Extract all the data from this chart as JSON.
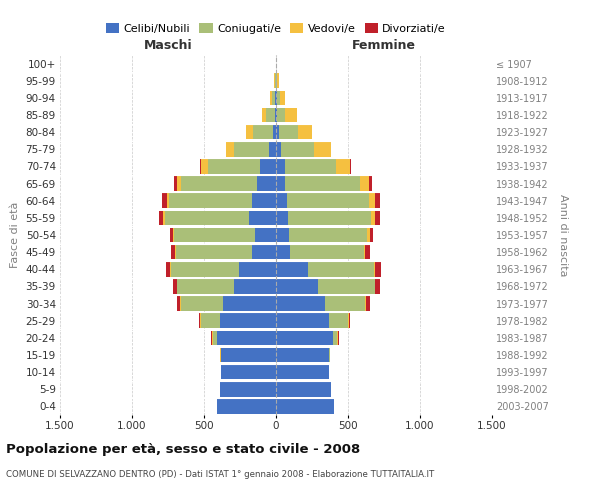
{
  "age_groups": [
    "0-4",
    "5-9",
    "10-14",
    "15-19",
    "20-24",
    "25-29",
    "30-34",
    "35-39",
    "40-44",
    "45-49",
    "50-54",
    "55-59",
    "60-64",
    "65-69",
    "70-74",
    "75-79",
    "80-84",
    "85-89",
    "90-94",
    "95-99",
    "100+"
  ],
  "birth_years": [
    "2003-2007",
    "1998-2002",
    "1993-1997",
    "1988-1992",
    "1983-1987",
    "1978-1982",
    "1973-1977",
    "1968-1972",
    "1963-1967",
    "1958-1962",
    "1953-1957",
    "1948-1952",
    "1943-1947",
    "1938-1942",
    "1933-1937",
    "1928-1932",
    "1923-1927",
    "1918-1922",
    "1913-1917",
    "1908-1912",
    "≤ 1907"
  ],
  "male_celibe": [
    410,
    390,
    380,
    380,
    410,
    390,
    370,
    295,
    260,
    165,
    145,
    190,
    170,
    130,
    110,
    50,
    20,
    10,
    5,
    2,
    0
  ],
  "male_coniugato": [
    0,
    0,
    0,
    5,
    30,
    130,
    290,
    390,
    470,
    530,
    560,
    580,
    570,
    530,
    360,
    240,
    140,
    60,
    20,
    5,
    0
  ],
  "male_vedovo": [
    0,
    0,
    0,
    5,
    5,
    5,
    5,
    5,
    5,
    5,
    10,
    15,
    20,
    30,
    50,
    55,
    50,
    30,
    15,
    5,
    0
  ],
  "male_divorziato": [
    0,
    0,
    0,
    0,
    5,
    10,
    20,
    25,
    30,
    30,
    20,
    25,
    30,
    20,
    5,
    0,
    0,
    0,
    0,
    0,
    0
  ],
  "female_celibe": [
    400,
    380,
    365,
    370,
    395,
    370,
    340,
    290,
    220,
    100,
    90,
    80,
    75,
    65,
    60,
    35,
    20,
    10,
    5,
    2,
    0
  ],
  "female_coniugato": [
    0,
    0,
    0,
    5,
    30,
    130,
    280,
    395,
    460,
    510,
    545,
    580,
    570,
    520,
    360,
    230,
    130,
    55,
    20,
    5,
    0
  ],
  "female_vedovo": [
    0,
    0,
    0,
    0,
    5,
    5,
    5,
    5,
    10,
    10,
    15,
    30,
    40,
    60,
    95,
    115,
    100,
    80,
    35,
    15,
    2
  ],
  "female_divorziato": [
    0,
    0,
    0,
    0,
    5,
    10,
    25,
    30,
    40,
    35,
    25,
    30,
    35,
    20,
    5,
    0,
    0,
    0,
    0,
    0,
    0
  ],
  "colors": {
    "celibe": "#4472C4",
    "coniugato": "#AABF78",
    "vedovo": "#F5C040",
    "divorziato": "#C0202A"
  },
  "title": "Popolazione per età, sesso e stato civile - 2008",
  "subtitle": "COMUNE DI SELVAZZANO DENTRO (PD) - Dati ISTAT 1° gennaio 2008 - Elaborazione TUTTAITALIA.IT",
  "xlabel_left": "Maschi",
  "xlabel_right": "Femmine",
  "ylabel_left": "Fasce di età",
  "ylabel_right": "Anni di nascita",
  "xlim": 1500,
  "xtick_labels": [
    "1.500",
    "1.000",
    "500",
    "0",
    "500",
    "1.000",
    "1.500"
  ],
  "bg_color": "#FFFFFF",
  "grid_color": "#BBBBBB"
}
